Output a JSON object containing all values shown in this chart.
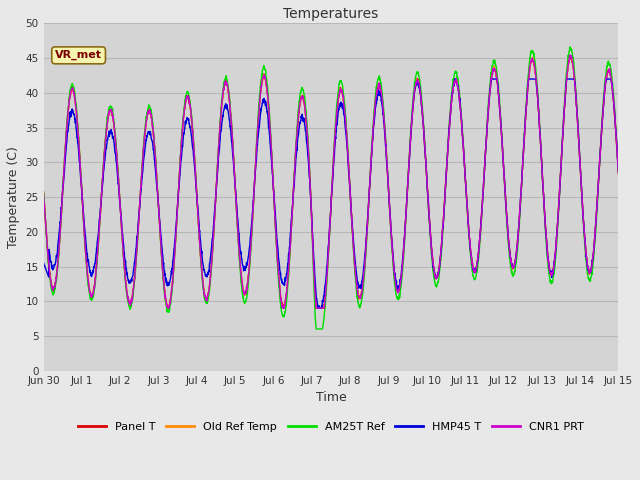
{
  "title": "Temperatures",
  "xlabel": "Time",
  "ylabel": "Temperature (C)",
  "ylim": [
    0,
    50
  ],
  "yticks": [
    0,
    5,
    10,
    15,
    20,
    25,
    30,
    35,
    40,
    45,
    50
  ],
  "background_color": "#e8e8e8",
  "plot_bg_color": "#d4d4d4",
  "series": {
    "Panel T": {
      "color": "#dd0000"
    },
    "Old Ref Temp": {
      "color": "#ff8c00"
    },
    "AM25T Ref": {
      "color": "#00dd00"
    },
    "HMP45 T": {
      "color": "#0000dd"
    },
    "CNR1 PRT": {
      "color": "#cc00cc"
    }
  },
  "annotation_text": "VR_met",
  "xticklabels": [
    "Jun 30",
    "Jul 1",
    "Jul 2",
    "Jul 3",
    "Jul 4",
    "Jul 5",
    "Jul 6",
    "Jul 7",
    "Jul 8",
    "Jul 9",
    "Jul 10",
    "Jul 11",
    "Jul 12",
    "Jul 13",
    "Jul 14",
    "Jul 15"
  ],
  "xtick_positions": [
    0,
    1,
    2,
    3,
    4,
    5,
    6,
    7,
    8,
    9,
    10,
    11,
    12,
    13,
    14,
    15
  ],
  "grid_color": "#c0c0c0",
  "figsize": [
    6.4,
    4.8
  ],
  "dpi": 100
}
